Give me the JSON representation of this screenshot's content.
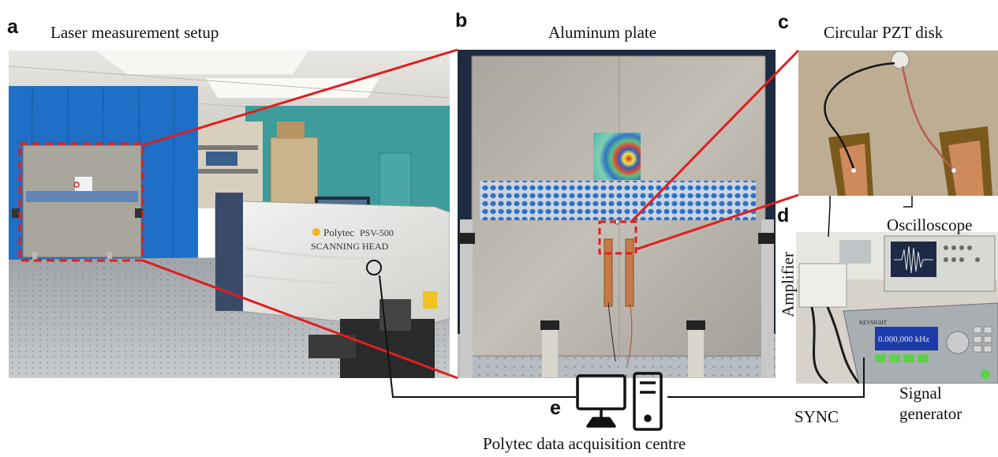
{
  "panels": {
    "a": {
      "letter": "a",
      "title": "Laser measurement setup"
    },
    "b": {
      "letter": "b",
      "title": "Aluminum plate"
    },
    "c": {
      "letter": "c",
      "title": "Circular PZT disk"
    },
    "d": {
      "letter": "d",
      "oscilloscope": "Oscilloscope",
      "amplifier": "Amplifier",
      "signal_generator_line1": "Signal",
      "signal_generator_line2": "generator",
      "generator_display": "0.000,000 kHz",
      "generator_brand": "KEYSIGHT"
    },
    "e": {
      "letter": "e",
      "caption": "Polytec data acquisition centre",
      "sync": "SYNC"
    }
  },
  "scanner": {
    "brand": "Polytec",
    "model": "PSV-500",
    "head": "SCANNING HEAD"
  },
  "colors": {
    "red": "#e01e1e",
    "blue_curtain": "#1f6fc7",
    "teal_wall": "#3f9e9e",
    "aluminum": "#b9b4ab",
    "copper": "#c77a45"
  },
  "icons": [
    "computer-icon"
  ]
}
